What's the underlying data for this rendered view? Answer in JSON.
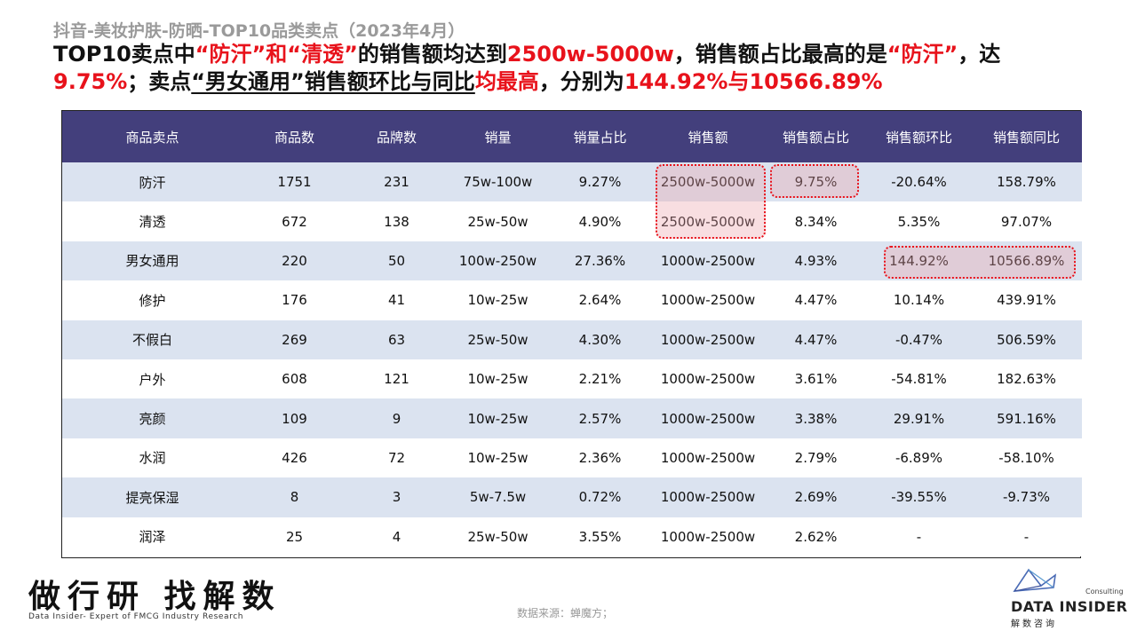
{
  "header": {
    "subtitle": "抖音-美妆护肤-防晒-TOP10品类卖点（2023年4月）",
    "headline_parts": [
      {
        "text": "TOP10卖点中",
        "style": "normal"
      },
      {
        "text": "“防汗”和“清透”",
        "style": "red"
      },
      {
        "text": "的销售额均达到",
        "style": "normal"
      },
      {
        "text": "2500w-5000w",
        "style": "red"
      },
      {
        "text": "，销售额占比最高的是",
        "style": "normal"
      },
      {
        "text": "“防汗”",
        "style": "red"
      },
      {
        "text": "，达",
        "style": "normal"
      },
      {
        "text": "9.75%",
        "style": "red"
      },
      {
        "text": "；卖点",
        "style": "normal"
      },
      {
        "text": "“男女通用”销售额环比与同比",
        "style": "underline"
      },
      {
        "text": "均最高",
        "style": "red"
      },
      {
        "text": "，分别为",
        "style": "normal"
      },
      {
        "text": "144.92%与10566.89%",
        "style": "red"
      }
    ]
  },
  "table": {
    "columns": [
      "商品卖点",
      "商品数",
      "品牌数",
      "销量",
      "销量占比",
      "销售额",
      "销售额占比",
      "销售额环比",
      "销售额同比"
    ],
    "rows": [
      [
        "防汗",
        "1751",
        "231",
        "75w-100w",
        "9.27%",
        "2500w-5000w",
        "9.75%",
        "-20.64%",
        "158.79%"
      ],
      [
        "清透",
        "672",
        "138",
        "25w-50w",
        "4.90%",
        "2500w-5000w",
        "8.34%",
        "5.35%",
        "97.07%"
      ],
      [
        "男女通用",
        "220",
        "50",
        "100w-250w",
        "27.36%",
        "1000w-2500w",
        "4.93%",
        "144.92%",
        "10566.89%"
      ],
      [
        "修护",
        "176",
        "41",
        "10w-25w",
        "2.64%",
        "1000w-2500w",
        "4.47%",
        "10.14%",
        "439.91%"
      ],
      [
        "不假白",
        "269",
        "63",
        "25w-50w",
        "4.30%",
        "1000w-2500w",
        "4.47%",
        "-0.47%",
        "506.59%"
      ],
      [
        "户外",
        "608",
        "121",
        "10w-25w",
        "2.21%",
        "1000w-2500w",
        "3.61%",
        "-54.81%",
        "182.63%"
      ],
      [
        "亮颜",
        "109",
        "9",
        "10w-25w",
        "2.57%",
        "1000w-2500w",
        "3.38%",
        "29.91%",
        "591.16%"
      ],
      [
        "水润",
        "426",
        "72",
        "10w-25w",
        "2.36%",
        "1000w-2500w",
        "2.79%",
        "-6.89%",
        "-58.10%"
      ],
      [
        "提亮保湿",
        "8",
        "3",
        "5w-7.5w",
        "0.72%",
        "1000w-2500w",
        "2.69%",
        "-39.55%",
        "-9.73%"
      ],
      [
        "润泽",
        "25",
        "4",
        "25w-50w",
        "3.55%",
        "1000w-2500w",
        "2.62%",
        "-",
        "-"
      ]
    ],
    "header_color": "#433f7c",
    "stripe_color": "#dbe3f0",
    "highlight_color": "#e8121b"
  },
  "footer": {
    "slogan": "做行研 找解数",
    "slogan_en": "Data Insider- Expert of FMCG Industry Research",
    "source": "数据来源：蝉魔方；",
    "logo_consulting": "Consulting",
    "logo_name": "DATA INSIDER",
    "logo_cn": "解数咨询"
  }
}
